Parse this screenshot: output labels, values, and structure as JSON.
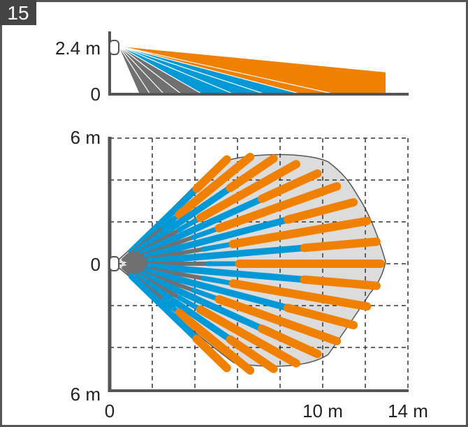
{
  "figure_number": "15",
  "side_view": {
    "y_labels": {
      "top": "2.4 m",
      "bottom": "0"
    }
  },
  "top_view": {
    "y_labels": {
      "top": "6 m",
      "middle": "0",
      "bottom": "6 m"
    },
    "x_labels": {
      "start": "0",
      "mid": "10 m",
      "end": "14 m"
    }
  },
  "colors": {
    "frame": "#555555",
    "axis": "#555555",
    "orange": "#f08100",
    "blue": "#0099d8",
    "gray": "#707070",
    "coverage_fill": "#dcdcdc",
    "grid": "#333333"
  },
  "icons": {
    "detector": "detector-icon"
  }
}
